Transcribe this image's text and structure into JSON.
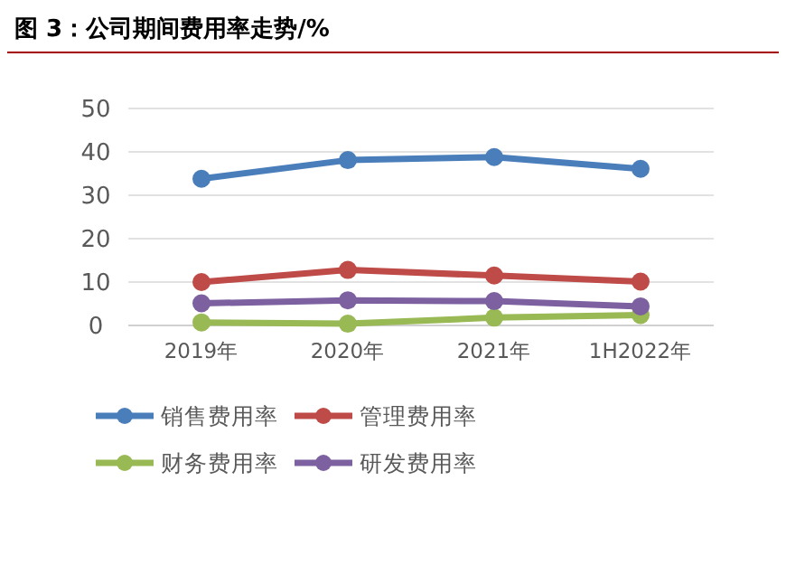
{
  "chart_data": {
    "type": "line",
    "title": "图 3：公司期间费用率走势/%",
    "categories": [
      "2019年",
      "2020年",
      "2021年",
      "1H2022年"
    ],
    "series": [
      {
        "name": "销售费用率",
        "color": "#4a7ebb",
        "values": [
          33.8,
          38.1,
          38.8,
          36.1
        ]
      },
      {
        "name": "管理费用率",
        "color": "#be4b48",
        "values": [
          10.0,
          12.8,
          11.5,
          10.1
        ]
      },
      {
        "name": "财务费用率",
        "color": "#98b954",
        "values": [
          0.7,
          0.4,
          1.8,
          2.4
        ]
      },
      {
        "name": "研发费用率",
        "color": "#7d60a0",
        "values": [
          5.1,
          5.8,
          5.6,
          4.4
        ]
      }
    ],
    "ylim": [
      0,
      50
    ],
    "yticks": [
      0,
      10,
      20,
      30,
      40,
      50
    ],
    "grid": "y",
    "legend": "bottom",
    "marker": "circle",
    "line_style": "solid"
  }
}
